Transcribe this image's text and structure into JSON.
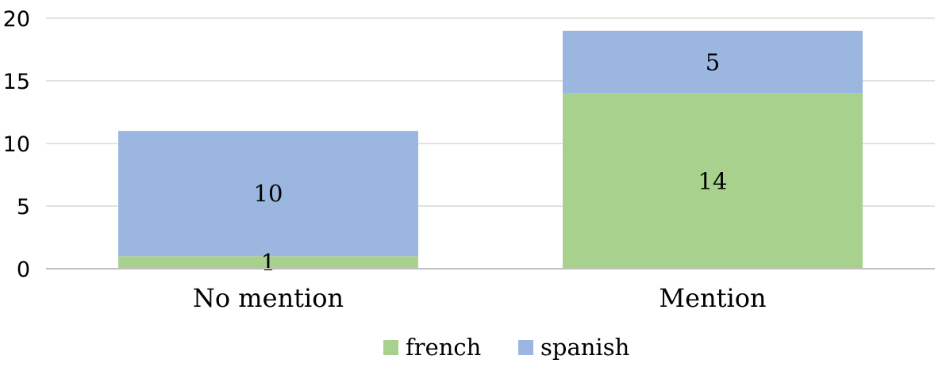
{
  "chart_data": {
    "type": "bar",
    "stacked": true,
    "categories": [
      "No mention",
      "Mention"
    ],
    "series": [
      {
        "name": "french",
        "values": [
          1,
          14
        ],
        "color": "#a9d18e"
      },
      {
        "name": "spanish",
        "values": [
          10,
          5
        ],
        "color": "#9bb7e0"
      }
    ],
    "title": "",
    "xlabel": "",
    "ylabel": "",
    "ylim": [
      0,
      20
    ],
    "yticks": [
      0,
      5,
      10,
      15,
      20
    ],
    "grid": true,
    "legend_position": "bottom",
    "data_labels": true
  }
}
